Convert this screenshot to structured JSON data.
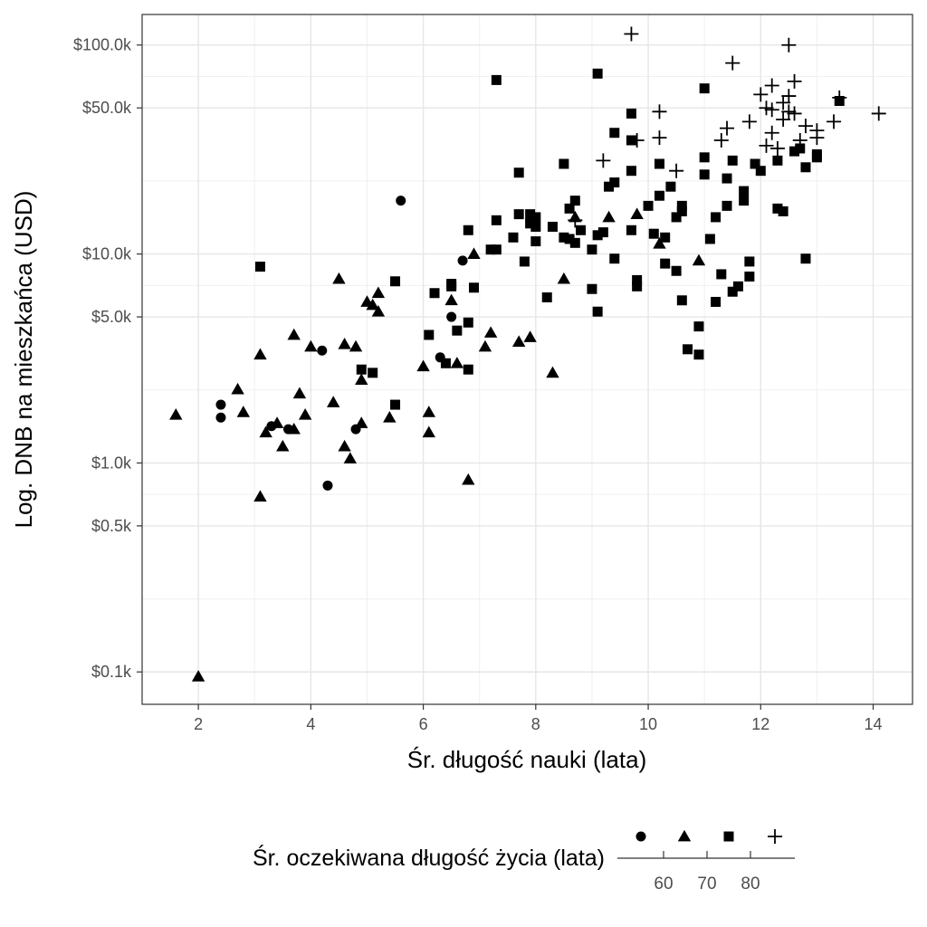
{
  "chart_data": {
    "type": "scatter",
    "title": "",
    "xlabel": "Śr. długość nauki (lata)",
    "ylabel": "Log. DNB na mieszkańca (USD)",
    "x_scale": "linear",
    "y_scale": "log10",
    "xlim": [
      1.0,
      14.7
    ],
    "ylim": [
      70,
      140000
    ],
    "x_ticks": [
      2,
      4,
      6,
      8,
      10,
      12,
      14
    ],
    "x_tick_labels": [
      "2",
      "4",
      "6",
      "8",
      "10",
      "12",
      "14"
    ],
    "y_ticks": [
      100,
      500,
      1000,
      5000,
      10000,
      50000,
      100000
    ],
    "y_tick_labels": [
      "$0.1k",
      "$0.5k",
      "$1.0k",
      "$5.0k",
      "$10.0k",
      "$50.0k",
      "$100.0k"
    ],
    "grid": true,
    "legend": {
      "title": "Śr. oczekiwana długość życia (lata)",
      "position": "bottom",
      "shapes": [
        "circle",
        "triangle",
        "square",
        "plus"
      ],
      "scale_ticks": [
        "60",
        "70",
        "80"
      ]
    },
    "series": [
      {
        "shape": "circle",
        "points": [
          [
            2.4,
            1900
          ],
          [
            2.4,
            1650
          ],
          [
            3.3,
            1500
          ],
          [
            3.6,
            1450
          ],
          [
            4.2,
            3450
          ],
          [
            4.8,
            1450
          ],
          [
            4.3,
            780
          ],
          [
            5.6,
            18000
          ],
          [
            6.7,
            9300
          ],
          [
            6.5,
            5000
          ],
          [
            6.3,
            3200
          ]
        ]
      },
      {
        "shape": "triangle",
        "points": [
          [
            1.6,
            1700
          ],
          [
            2.0,
            95
          ],
          [
            2.7,
            2250
          ],
          [
            2.8,
            1750
          ],
          [
            3.1,
            3300
          ],
          [
            3.1,
            690
          ],
          [
            3.2,
            1400
          ],
          [
            3.4,
            1550
          ],
          [
            3.5,
            1200
          ],
          [
            3.7,
            1450
          ],
          [
            3.7,
            4100
          ],
          [
            3.8,
            2150
          ],
          [
            3.9,
            1700
          ],
          [
            4.0,
            3600
          ],
          [
            4.4,
            1950
          ],
          [
            4.5,
            7600
          ],
          [
            4.6,
            3700
          ],
          [
            4.6,
            1200
          ],
          [
            4.7,
            1050
          ],
          [
            4.8,
            3600
          ],
          [
            4.9,
            2500
          ],
          [
            4.9,
            1550
          ],
          [
            5.0,
            5900
          ],
          [
            5.1,
            5700
          ],
          [
            5.2,
            6500
          ],
          [
            5.2,
            5300
          ],
          [
            5.4,
            1650
          ],
          [
            6.0,
            2900
          ],
          [
            6.1,
            1750
          ],
          [
            6.1,
            1400
          ],
          [
            6.5,
            6000
          ],
          [
            6.6,
            3000
          ],
          [
            6.8,
            830
          ],
          [
            6.9,
            10000
          ],
          [
            7.1,
            3600
          ],
          [
            7.2,
            4200
          ],
          [
            7.7,
            3800
          ],
          [
            7.9,
            4000
          ],
          [
            8.3,
            2700
          ],
          [
            8.5,
            7600
          ],
          [
            8.7,
            15000
          ],
          [
            9.3,
            15000
          ],
          [
            9.8,
            15500
          ],
          [
            10.2,
            11200
          ],
          [
            10.9,
            9300
          ]
        ]
      },
      {
        "shape": "square",
        "points": [
          [
            3.1,
            8700
          ],
          [
            4.9,
            2800
          ],
          [
            5.1,
            2700
          ],
          [
            5.5,
            7400
          ],
          [
            5.5,
            1900
          ],
          [
            6.1,
            4100
          ],
          [
            6.2,
            6500
          ],
          [
            6.4,
            3000
          ],
          [
            6.5,
            7200
          ],
          [
            6.5,
            7000
          ],
          [
            6.6,
            4300
          ],
          [
            6.8,
            13000
          ],
          [
            6.8,
            4700
          ],
          [
            6.8,
            2800
          ],
          [
            6.9,
            6900
          ],
          [
            7.2,
            10500
          ],
          [
            7.3,
            14500
          ],
          [
            7.3,
            10500
          ],
          [
            7.3,
            68000
          ],
          [
            7.6,
            12000
          ],
          [
            7.7,
            15500
          ],
          [
            7.7,
            24500
          ],
          [
            7.8,
            9200
          ],
          [
            7.9,
            15500
          ],
          [
            7.9,
            14000
          ],
          [
            8.0,
            15000
          ],
          [
            8.0,
            11500
          ],
          [
            8.0,
            13500
          ],
          [
            8.2,
            6200
          ],
          [
            8.3,
            13500
          ],
          [
            8.5,
            12000
          ],
          [
            8.5,
            27000
          ],
          [
            8.6,
            11800
          ],
          [
            8.6,
            16500
          ],
          [
            8.7,
            11300
          ],
          [
            8.7,
            18000
          ],
          [
            8.8,
            13000
          ],
          [
            9.0,
            10500
          ],
          [
            9.0,
            6800
          ],
          [
            9.1,
            5300
          ],
          [
            9.1,
            12300
          ],
          [
            9.1,
            73000
          ],
          [
            9.2,
            12700
          ],
          [
            9.3,
            21000
          ],
          [
            9.4,
            9500
          ],
          [
            9.4,
            22000
          ],
          [
            9.4,
            38000
          ],
          [
            9.7,
            47000
          ],
          [
            9.7,
            35000
          ],
          [
            9.7,
            25000
          ],
          [
            9.7,
            13000
          ],
          [
            9.8,
            7500
          ],
          [
            9.8,
            7000
          ],
          [
            10.0,
            17000
          ],
          [
            10.1,
            12500
          ],
          [
            10.2,
            27000
          ],
          [
            10.2,
            19000
          ],
          [
            10.3,
            12000
          ],
          [
            10.3,
            9000
          ],
          [
            10.4,
            21000
          ],
          [
            10.5,
            15000
          ],
          [
            10.5,
            8300
          ],
          [
            10.6,
            17000
          ],
          [
            10.6,
            16000
          ],
          [
            10.6,
            6000
          ],
          [
            10.7,
            3500
          ],
          [
            10.9,
            3300
          ],
          [
            10.9,
            4500
          ],
          [
            11.0,
            29000
          ],
          [
            11.0,
            24000
          ],
          [
            11.0,
            62000
          ],
          [
            11.1,
            11800
          ],
          [
            11.2,
            15000
          ],
          [
            11.2,
            5900
          ],
          [
            11.3,
            8000
          ],
          [
            11.4,
            17000
          ],
          [
            11.4,
            23000
          ],
          [
            11.5,
            6600
          ],
          [
            11.5,
            28000
          ],
          [
            11.6,
            7000
          ],
          [
            11.7,
            20000
          ],
          [
            11.7,
            18000
          ],
          [
            11.8,
            9200
          ],
          [
            11.8,
            7800
          ],
          [
            11.9,
            27000
          ],
          [
            12.0,
            25000
          ],
          [
            12.3,
            28000
          ],
          [
            12.3,
            16500
          ],
          [
            12.4,
            16000
          ],
          [
            12.6,
            31000
          ],
          [
            12.7,
            32000
          ],
          [
            12.8,
            26000
          ],
          [
            12.8,
            9500
          ],
          [
            13.0,
            29000
          ],
          [
            13.0,
            30000
          ],
          [
            13.4,
            54000
          ]
        ]
      },
      {
        "shape": "plus",
        "points": [
          [
            9.2,
            28000
          ],
          [
            8.7,
            14500
          ],
          [
            9.7,
            113000
          ],
          [
            9.8,
            35000
          ],
          [
            10.2,
            48000
          ],
          [
            10.2,
            36000
          ],
          [
            10.5,
            25000
          ],
          [
            11.3,
            35000
          ],
          [
            11.4,
            40000
          ],
          [
            11.5,
            82000
          ],
          [
            11.8,
            43000
          ],
          [
            12.0,
            58000
          ],
          [
            12.1,
            50000
          ],
          [
            12.1,
            33000
          ],
          [
            12.2,
            64000
          ],
          [
            12.2,
            49000
          ],
          [
            12.2,
            38000
          ],
          [
            12.3,
            32000
          ],
          [
            12.4,
            53000
          ],
          [
            12.4,
            44000
          ],
          [
            12.5,
            100000
          ],
          [
            12.5,
            57000
          ],
          [
            12.5,
            48000
          ],
          [
            12.6,
            67000
          ],
          [
            12.6,
            47000
          ],
          [
            12.7,
            35000
          ],
          [
            12.8,
            41000
          ],
          [
            13.0,
            36000
          ],
          [
            13.0,
            39000
          ],
          [
            13.3,
            43000
          ],
          [
            13.4,
            56000
          ],
          [
            14.1,
            47000
          ]
        ]
      }
    ]
  }
}
